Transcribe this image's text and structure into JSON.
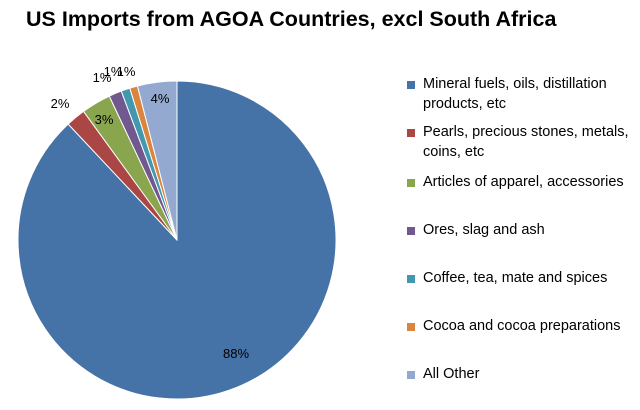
{
  "chart_data": {
    "type": "pie",
    "title": "US Imports from AGOA Countries, excl South Africa",
    "legend_position": "right",
    "slices": [
      {
        "name": "Mineral fuels, oils, distillation products, etc",
        "value": 88,
        "label": "88%",
        "color": "#4572A7"
      },
      {
        "name": "Pearls, precious stones, metals, coins, etc",
        "value": 2,
        "label": "2%",
        "color": "#AA4643"
      },
      {
        "name": "Articles of apparel, accessories",
        "value": 3,
        "label": "3%",
        "color": "#89A54E"
      },
      {
        "name": "Ores, slag and ash",
        "value": 1.3,
        "label": "1%",
        "color": "#71588F"
      },
      {
        "name": "Coffee, tea, mate and spices",
        "value": 0.9,
        "label": "1%",
        "color": "#4198AF"
      },
      {
        "name": "Cocoa and cocoa preparations",
        "value": 0.8,
        "label": "1%",
        "color": "#DB843D"
      },
      {
        "name": "All Other",
        "value": 4,
        "label": "4%",
        "color": "#93A9CF"
      }
    ]
  }
}
